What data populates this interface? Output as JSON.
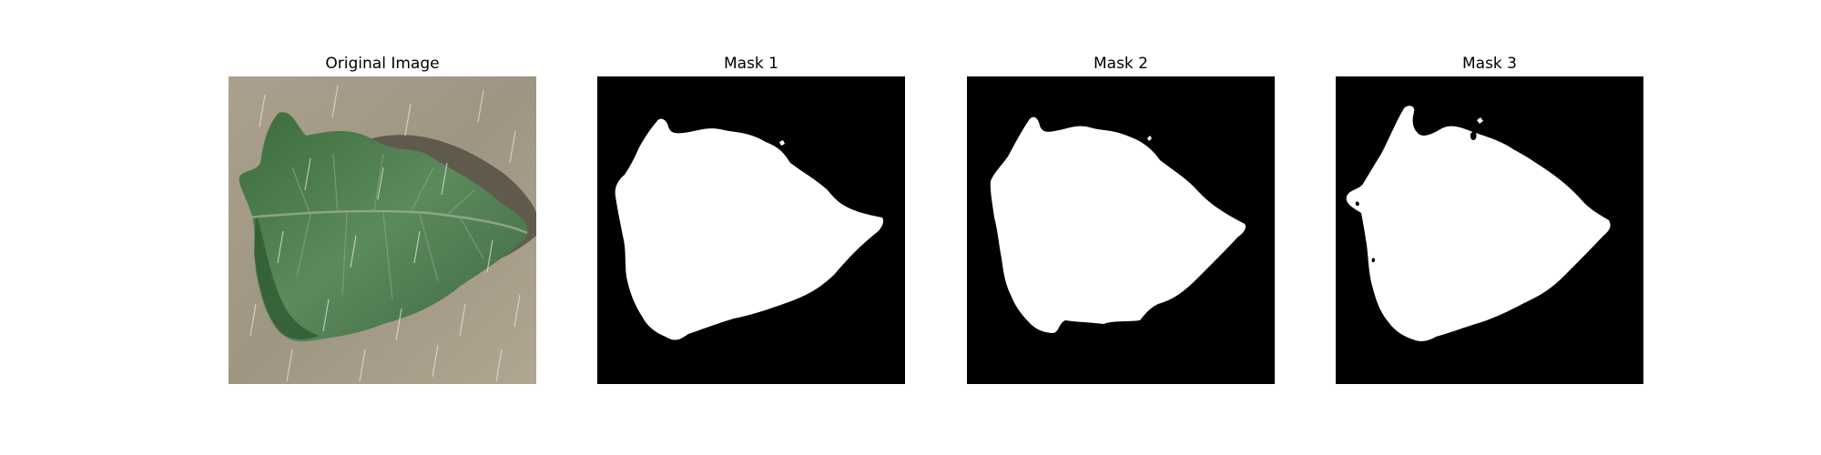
{
  "figure": {
    "panels": [
      {
        "title": "Original Image"
      },
      {
        "title": "Mask 1"
      },
      {
        "title": "Mask 2"
      },
      {
        "title": "Mask 3"
      }
    ]
  },
  "colors": {
    "mask_background": "#000000",
    "mask_foreground": "#ffffff",
    "cardboard": "#a39a88",
    "leaf_dark": "#2f5a32",
    "leaf_mid": "#4e7a52",
    "leaf_light": "#7d9a7a"
  }
}
